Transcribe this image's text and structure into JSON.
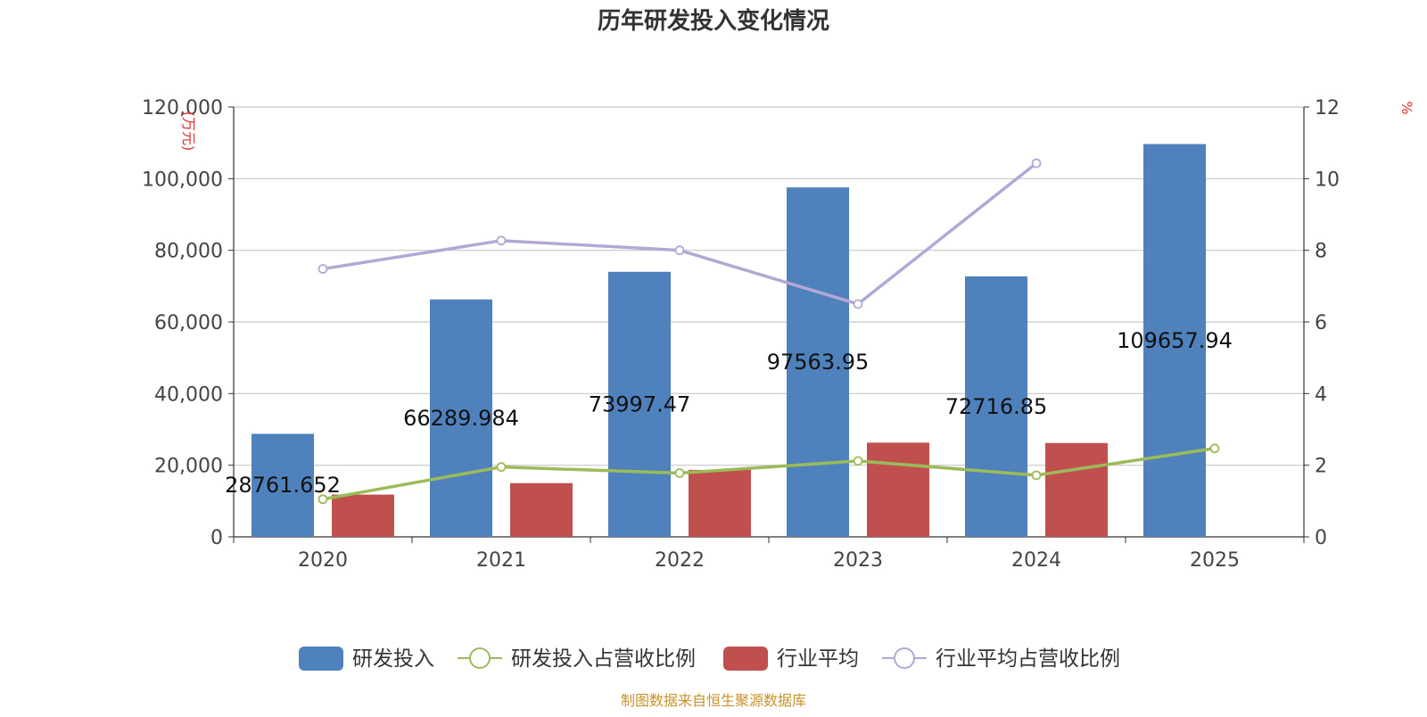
{
  "chart_data": {
    "type": "bar",
    "title": "历年研发投入变化情况",
    "source": "制图数据来自恒生聚源数据库",
    "categories": [
      "2020",
      "2021",
      "2022",
      "2023",
      "2024",
      "2025"
    ],
    "y_left": {
      "unit": "(万元)",
      "ylim": [
        0,
        120000
      ],
      "ticks": [
        0,
        20000,
        40000,
        60000,
        80000,
        100000,
        120000
      ],
      "tick_labels": [
        "0",
        "20,000",
        "40,000",
        "60,000",
        "80,000",
        "100,000",
        "120,000"
      ]
    },
    "y_right": {
      "unit": "%",
      "ylim": [
        0,
        12
      ],
      "ticks": [
        0,
        2,
        4,
        6,
        8,
        10,
        12
      ],
      "tick_labels": [
        "0",
        "2",
        "4",
        "6",
        "8",
        "10",
        "12"
      ]
    },
    "grid": true,
    "legend_position": "bottom",
    "series": [
      {
        "name": "研发投入",
        "type": "bar",
        "axis": "left",
        "color": "#4f81bd",
        "values": [
          28761.652,
          66289.984,
          73997.47,
          97563.95,
          72716.85,
          109657.94
        ],
        "labels": [
          "28761.652",
          "66289.984",
          "73997.47",
          "97563.95",
          "72716.85",
          "109657.94"
        ]
      },
      {
        "name": "研发投入占营收比例",
        "type": "line",
        "axis": "right",
        "color": "#9bbb59",
        "values": [
          1.05,
          1.95,
          1.78,
          2.12,
          1.72,
          2.47
        ]
      },
      {
        "name": "行业平均",
        "type": "bar",
        "axis": "left",
        "color": "#c0504d",
        "values": [
          11800,
          15000,
          18700,
          26300,
          26200,
          null
        ]
      },
      {
        "name": "行业平均占营收比例",
        "type": "line",
        "axis": "right",
        "color": "#b4a7d6",
        "values": [
          7.48,
          8.27,
          8.0,
          6.5,
          10.43,
          null
        ]
      }
    ]
  }
}
